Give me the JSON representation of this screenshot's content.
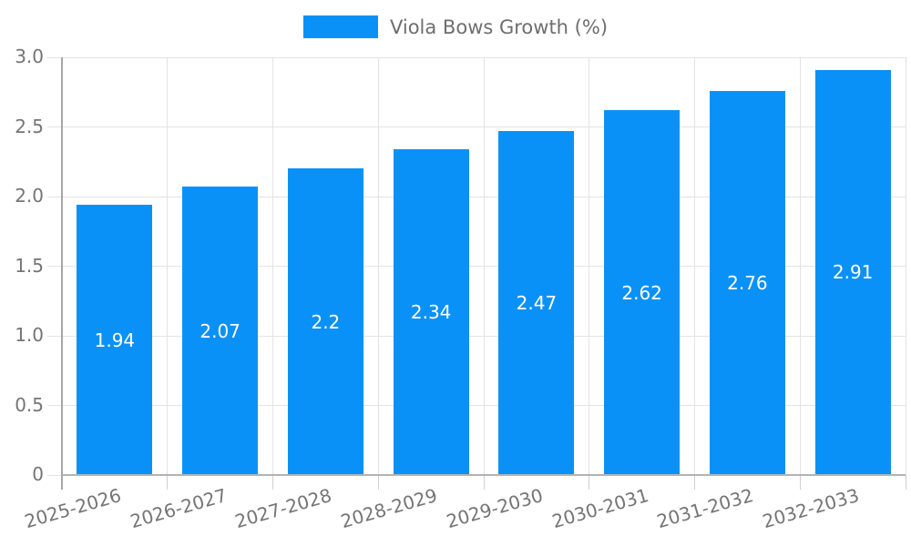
{
  "legend": {
    "label": "Viola Bows Growth (%)"
  },
  "chart_data": {
    "type": "bar",
    "title": "",
    "xlabel": "",
    "ylabel": "",
    "categories": [
      "2025-2026",
      "2026-2027",
      "2027-2028",
      "2028-2029",
      "2029-2030",
      "2030-2031",
      "2031-2032",
      "2032-2033"
    ],
    "series": [
      {
        "name": "Viola Bows Growth (%)",
        "values": [
          1.94,
          2.07,
          2.2,
          2.34,
          2.47,
          2.62,
          2.76,
          2.91
        ],
        "value_labels": [
          "1.94",
          "2.07",
          "2.2",
          "2.34",
          "2.47",
          "2.62",
          "2.76",
          "2.91"
        ]
      }
    ],
    "ylim": [
      0,
      3.0
    ],
    "yticks": [
      0,
      0.5,
      1.0,
      1.5,
      2.0,
      2.5,
      3.0
    ],
    "ytick_labels": [
      "0",
      "0.5",
      "1.0",
      "1.5",
      "2.0",
      "2.5",
      "3.0"
    ],
    "grid": true,
    "legend_position": "top-center",
    "colors": {
      "bar": "#0a91f7",
      "gridline": "#e3e3e3",
      "axis": "#a6a6a6",
      "tick_text": "#757575",
      "legend_text": "#6e6e6e",
      "value_label": "#ffffff"
    }
  }
}
